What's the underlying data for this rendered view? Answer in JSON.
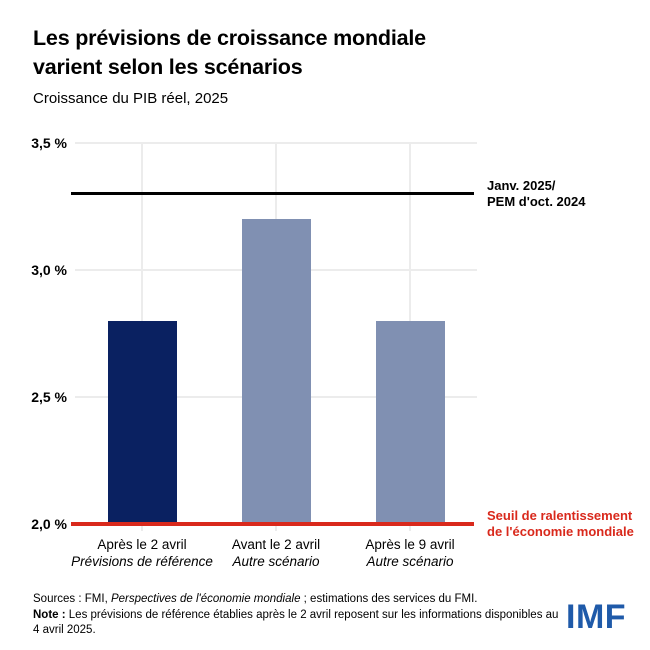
{
  "header": {
    "title_line1": "Les prévisions de croissance mondiale",
    "title_line2": "varient selon les scénarios",
    "subtitle": "Croissance du PIB réel, 2025"
  },
  "chart_data": {
    "type": "bar",
    "title": "Les prévisions de croissance mondiale varient selon les scénarios",
    "subtitle": "Croissance du PIB réel, 2025",
    "unit": "%",
    "ylim": [
      2.0,
      3.5
    ],
    "grid": true,
    "yticks": [
      {
        "value": 3.5,
        "label": "3,5 %"
      },
      {
        "value": 3.0,
        "label": "3,0 %"
      },
      {
        "value": 2.5,
        "label": "2,5 %"
      },
      {
        "value": 2.0,
        "label": "2,0 %"
      }
    ],
    "categories": [
      {
        "line1": "Après le 2 avril",
        "line2": "Prévisions de référence"
      },
      {
        "line1": "Avant le 2 avril",
        "line2": "Autre scénario"
      },
      {
        "line1": "Après le 9 avril",
        "line2": "Autre scénario"
      }
    ],
    "values": [
      2.8,
      3.2,
      2.8
    ],
    "bar_colors": [
      "#0a2161",
      "#8090b2",
      "#8090b2"
    ],
    "reference_lines": [
      {
        "value": 3.3,
        "color": "#000000",
        "thickness": 3,
        "label_line1": "Janv. 2025/",
        "label_line2": "PEM d'oct. 2024"
      },
      {
        "value": 2.0,
        "color": "#d9291c",
        "thickness": 4,
        "label_line1": "Seuil de ralentissement",
        "label_line2": "de l'économie mondiale"
      }
    ]
  },
  "footer": {
    "sources_prefix": "Sources : FMI, ",
    "sources_italic": "Perspectives de l'économie mondiale",
    "sources_suffix": " ; estimations des services du FMI.",
    "note_label": "Note :",
    "note_text": " Les prévisions de référence établies après le 2 avril reposent sur les informations disponibles au 4 avril 2025."
  },
  "logo": {
    "text": "IMF",
    "color": "#1f5aa9"
  }
}
